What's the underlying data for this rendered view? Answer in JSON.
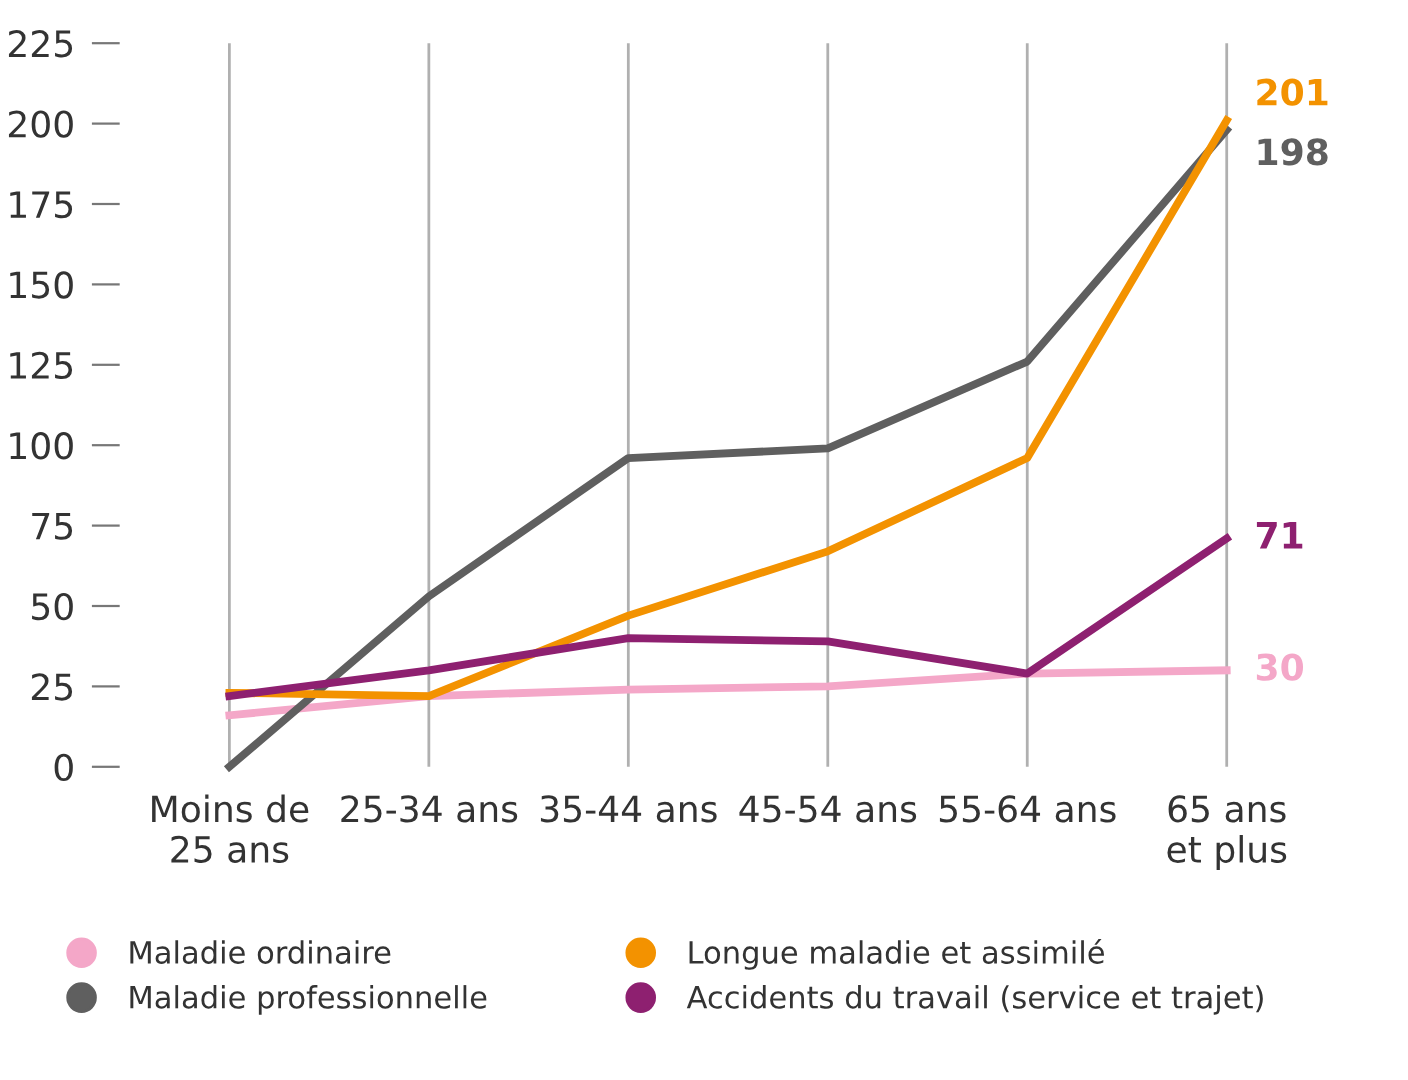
{
  "chart_data": {
    "type": "line",
    "categories": [
      "Moins de\n25 ans",
      "25-34 ans",
      "35-44 ans",
      "45-54 ans",
      "55-64 ans",
      "65 ans\net plus"
    ],
    "series": [
      {
        "name": "Maladie ordinaire",
        "color": "#f4a7c8",
        "values": [
          16,
          22,
          24,
          25,
          29,
          30
        ],
        "value_labels": [
          null,
          null,
          null,
          null,
          null,
          "30"
        ]
      },
      {
        "name": "Maladie professionnelle",
        "color": "#5f5f5f",
        "values": [
          0,
          53,
          96,
          99,
          126,
          198
        ],
        "value_labels": [
          null,
          null,
          null,
          null,
          null,
          "198"
        ]
      },
      {
        "name": "Longue maladie et assimilé",
        "color": "#f39200",
        "values": [
          23,
          22,
          47,
          67,
          96,
          201
        ],
        "value_labels": [
          null,
          null,
          null,
          null,
          null,
          "201"
        ]
      },
      {
        "name": "Accidents du travail (service et trajet)",
        "color": "#8e2070",
        "values": [
          22,
          30,
          40,
          39,
          29,
          71
        ],
        "value_labels": [
          null,
          null,
          null,
          null,
          null,
          "71"
        ]
      }
    ],
    "ylim": [
      0,
      225
    ],
    "yticks": [
      0,
      25,
      50,
      75,
      100,
      125,
      150,
      175,
      200,
      225
    ],
    "grid": "x",
    "legend": "bottom",
    "marker": "none",
    "line_style": "solid"
  }
}
